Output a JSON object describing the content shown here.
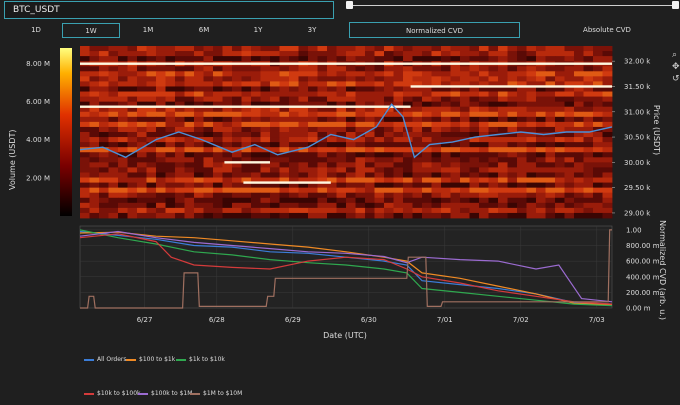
{
  "symbol": {
    "value": "BTC_USDT"
  },
  "timeframes": [
    {
      "label": "1D",
      "active": false
    },
    {
      "label": "1W",
      "active": true
    },
    {
      "label": "1M",
      "active": false
    },
    {
      "label": "6M",
      "active": false
    },
    {
      "label": "1Y",
      "active": false
    },
    {
      "label": "3Y",
      "active": false
    }
  ],
  "cvd_modes": [
    {
      "label": "Normalized CVD",
      "active": true
    },
    {
      "label": "Absolute CVD",
      "active": false
    }
  ],
  "toolbar": {
    "icons": [
      "zoom-icon",
      "pan-icon",
      "reset-icon"
    ]
  },
  "chart_data": [
    {
      "type": "heatmap",
      "ylabel": "Price (USDT)",
      "ylim": [
        28900,
        32300
      ],
      "yticks": [
        "29.00 k",
        "29.50 k",
        "30.00 k",
        "30.50 k",
        "31.00 k",
        "31.50 k",
        "32.00 k"
      ],
      "ytick_values": [
        29000,
        29500,
        30000,
        30500,
        31000,
        31500,
        32000
      ],
      "colorbar": {
        "label": "Volume (USDT)",
        "ticks": [
          "2.00 M",
          "4.00 M",
          "6.00 M",
          "8.00 M"
        ],
        "tick_values": [
          2,
          4,
          6,
          8
        ],
        "range": [
          0,
          8.8
        ]
      },
      "price_series": {
        "x": [
          0,
          0.3,
          0.6,
          1.0,
          1.3,
          1.6,
          2.0,
          2.3,
          2.6,
          3.0,
          3.3,
          3.6,
          3.9,
          4.1,
          4.25,
          4.4,
          4.6,
          4.9,
          5.2,
          5.5,
          5.8,
          6.1,
          6.4,
          6.7,
          7.0
        ],
        "y": [
          30250,
          30300,
          30100,
          30450,
          30600,
          30450,
          30200,
          30350,
          30150,
          30300,
          30550,
          30450,
          30700,
          31150,
          30900,
          30100,
          30350,
          30400,
          30500,
          30550,
          30600,
          30550,
          30600,
          30600,
          30700
        ]
      },
      "bright_levels": [
        {
          "price": 31950,
          "x0": 0,
          "x1": 7.0
        },
        {
          "price": 31100,
          "x0": 0,
          "x1": 4.35
        },
        {
          "price": 31500,
          "x0": 4.35,
          "x1": 7.0
        },
        {
          "price": 30000,
          "x0": 1.9,
          "x1": 2.5
        },
        {
          "price": 29600,
          "x0": 2.15,
          "x1": 3.3
        }
      ]
    },
    {
      "type": "line",
      "xlabel": "Date (UTC)",
      "ylabel": "Normalized CVD (arb. u.)",
      "ylim": [
        0,
        1.05
      ],
      "yticks": [
        "0.00 m",
        "200.00 m",
        "400.00 m",
        "600.00 m",
        "800.00 m",
        "1.00"
      ],
      "ytick_values": [
        0,
        0.2,
        0.4,
        0.6,
        0.8,
        1.0
      ],
      "xticks": [
        "6/27",
        "6/28",
        "6/29",
        "6/30",
        "7/01",
        "7/02",
        "7/03"
      ],
      "xtick_values": [
        0.85,
        1.8,
        2.8,
        3.8,
        4.8,
        5.8,
        6.8
      ],
      "xlim": [
        0,
        7.0
      ],
      "series": [
        {
          "name": "All Orders",
          "color": "#3b7dd8",
          "x": [
            0,
            0.5,
            1.0,
            1.5,
            2.0,
            2.5,
            3.0,
            3.5,
            4.0,
            4.3,
            4.5,
            5.0,
            5.5,
            6.0,
            6.5,
            7.0
          ],
          "y": [
            0.98,
            0.93,
            0.88,
            0.8,
            0.78,
            0.72,
            0.7,
            0.65,
            0.6,
            0.55,
            0.35,
            0.3,
            0.25,
            0.18,
            0.07,
            0.05
          ]
        },
        {
          "name": "$100 to $1k",
          "color": "#f08a24",
          "x": [
            0,
            0.5,
            1.0,
            1.5,
            2.0,
            2.5,
            3.0,
            3.5,
            4.0,
            4.3,
            4.5,
            5.0,
            5.5,
            6.0,
            6.5,
            7.0
          ],
          "y": [
            0.96,
            0.97,
            0.92,
            0.9,
            0.86,
            0.82,
            0.78,
            0.72,
            0.65,
            0.6,
            0.45,
            0.38,
            0.28,
            0.18,
            0.06,
            0.04
          ]
        },
        {
          "name": "$1k to $10k",
          "color": "#2fa84f",
          "x": [
            0,
            0.5,
            1.0,
            1.5,
            2.0,
            2.5,
            3.0,
            3.5,
            4.0,
            4.3,
            4.5,
            5.0,
            5.5,
            6.0,
            6.5,
            7.0
          ],
          "y": [
            1.0,
            0.9,
            0.82,
            0.72,
            0.68,
            0.62,
            0.58,
            0.55,
            0.5,
            0.45,
            0.25,
            0.2,
            0.15,
            0.1,
            0.05,
            0.03
          ]
        },
        {
          "name": "$10k to $100k",
          "color": "#d43b3b",
          "x": [
            0,
            0.5,
            1.0,
            1.2,
            1.5,
            2.0,
            2.5,
            3.0,
            3.5,
            4.0,
            4.3,
            4.5,
            5.0,
            5.5,
            6.0,
            6.5,
            7.0
          ],
          "y": [
            0.9,
            0.95,
            0.85,
            0.65,
            0.55,
            0.52,
            0.5,
            0.6,
            0.65,
            0.62,
            0.5,
            0.4,
            0.32,
            0.22,
            0.15,
            0.08,
            0.05
          ]
        },
        {
          "name": "$100k to $1M",
          "color": "#9b6bd1",
          "x": [
            0,
            0.5,
            1.0,
            1.5,
            2.0,
            2.5,
            3.0,
            3.5,
            4.0,
            4.3,
            4.5,
            5.0,
            5.5,
            6.0,
            6.3,
            6.6,
            7.0
          ],
          "y": [
            0.92,
            0.98,
            0.9,
            0.84,
            0.8,
            0.76,
            0.72,
            0.7,
            0.66,
            0.58,
            0.65,
            0.62,
            0.6,
            0.5,
            0.55,
            0.12,
            0.08
          ]
        },
        {
          "name": "$1M to $10M",
          "color": "#a07060",
          "x": [
            0,
            0.1,
            0.12,
            0.18,
            0.2,
            1.35,
            1.37,
            1.55,
            1.57,
            2.45,
            2.47,
            2.55,
            2.57,
            4.3,
            4.32,
            4.55,
            4.57,
            4.75,
            4.77,
            6.95,
            6.97,
            7.0
          ],
          "y": [
            0,
            0,
            0.15,
            0.15,
            0,
            0,
            0.45,
            0.45,
            0.02,
            0.02,
            0.15,
            0.15,
            0.38,
            0.38,
            0.65,
            0.65,
            0.02,
            0.02,
            0.08,
            0.08,
            1.0,
            1.0
          ]
        }
      ]
    }
  ]
}
